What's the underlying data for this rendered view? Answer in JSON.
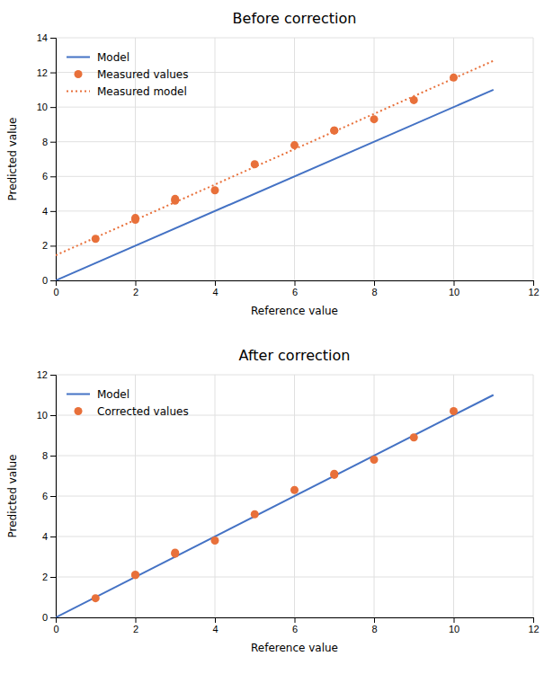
{
  "chart_data": [
    {
      "type": "line",
      "title": "Before correction",
      "xlabel": "Reference value",
      "ylabel": "Predicted value",
      "series": [
        {
          "name": "Model",
          "type": "line",
          "color": "#4472c4",
          "line_style": "solid",
          "x": [
            0,
            11
          ],
          "values": [
            0,
            11
          ]
        },
        {
          "name": "Measured values",
          "type": "scatter",
          "color": "#e8703a",
          "marker": "circle",
          "x": [
            1,
            2,
            2,
            3,
            3,
            4,
            5,
            6,
            7,
            7,
            8,
            9,
            10
          ],
          "values": [
            2.4,
            3.6,
            3.5,
            4.6,
            4.7,
            5.2,
            6.7,
            7.8,
            8.65,
            8.65,
            9.3,
            10.4,
            11.7
          ]
        },
        {
          "name": "Measured model",
          "type": "line",
          "color": "#e8703a",
          "line_style": "dotted",
          "x": [
            0,
            11
          ],
          "values": [
            1.45,
            12.67
          ]
        }
      ],
      "xlim": [
        0,
        12
      ],
      "ylim": [
        0,
        14
      ],
      "xticks": [
        0,
        2,
        4,
        6,
        8,
        10,
        12
      ],
      "yticks": [
        0,
        2,
        4,
        6,
        8,
        10,
        12,
        14
      ],
      "grid": true,
      "legend": "upper left"
    },
    {
      "type": "line",
      "title": "After correction",
      "xlabel": "Reference value",
      "ylabel": "Predicted value",
      "series": [
        {
          "name": "Model",
          "type": "line",
          "color": "#4472c4",
          "line_style": "solid",
          "x": [
            0,
            11
          ],
          "values": [
            0,
            11
          ]
        },
        {
          "name": "Corrected values",
          "type": "scatter",
          "color": "#e8703a",
          "marker": "circle",
          "x": [
            1,
            2,
            2,
            3,
            3,
            4,
            5,
            6,
            7,
            7,
            8,
            9,
            10
          ],
          "values": [
            0.95,
            2.1,
            2.1,
            3.15,
            3.2,
            3.8,
            5.1,
            6.3,
            7.05,
            7.1,
            7.8,
            8.9,
            10.2
          ]
        }
      ],
      "xlim": [
        0,
        12
      ],
      "ylim": [
        0,
        12
      ],
      "xticks": [
        0,
        2,
        4,
        6,
        8,
        10,
        12
      ],
      "yticks": [
        0,
        2,
        4,
        6,
        8,
        10,
        12
      ],
      "grid": true,
      "legend": "upper left"
    }
  ]
}
